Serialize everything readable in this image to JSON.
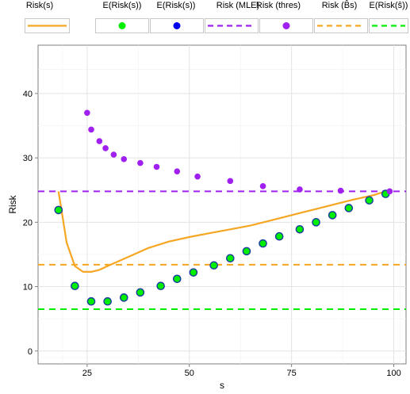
{
  "chart_data": {
    "type": "line",
    "xlabel": "s",
    "ylabel": "Risk",
    "xlim": [
      13,
      103
    ],
    "ylim": [
      -2,
      47.5
    ],
    "x_ticks": [
      25,
      50,
      75,
      100
    ],
    "y_ticks": [
      0,
      10,
      20,
      30,
      40
    ],
    "grid": true,
    "legend_position": "top",
    "colors": {
      "orange": "#f5a623",
      "green": "#00ee00",
      "blue": "#0000ee",
      "purple": "#a020f0",
      "dark_outline": "#1a3aa0"
    },
    "legend": [
      {
        "label": "Risk(s)",
        "key": "line",
        "color": "#f5a623",
        "dashed": false
      },
      {
        "label": "E(Risk(s))",
        "key": "dot",
        "color": "#00ee00",
        "dashed": false
      },
      {
        "label": "E(Risk(s))",
        "key": "dot",
        "color": "#0000ee",
        "dashed": false
      },
      {
        "label": "Risk (MLE)",
        "key": "line",
        "color": "#a020f0",
        "dashed": true
      },
      {
        "label": "Risk (thres)",
        "key": "dot",
        "color": "#a020f0",
        "dashed": false
      },
      {
        "label": "Risk (B̂s)",
        "key": "line",
        "color": "#f5a623",
        "dashed": true
      },
      {
        "label": "E(Risk(ŝ))",
        "key": "line",
        "color": "#00ee00",
        "dashed": true
      }
    ],
    "series": [
      {
        "name": "Risk(s)",
        "kind": "line",
        "color": "#f5a623",
        "x": [
          18,
          20,
          22,
          24,
          26,
          28,
          30,
          35,
          40,
          45,
          50,
          55,
          60,
          65,
          70,
          75,
          80,
          85,
          90,
          95,
          98
        ],
        "y": [
          24.8,
          16.8,
          13.2,
          12.3,
          12.3,
          12.6,
          13.2,
          14.6,
          16.0,
          17.0,
          17.7,
          18.3,
          18.9,
          19.5,
          20.3,
          21.1,
          21.9,
          22.7,
          23.5,
          24.2,
          24.8
        ]
      },
      {
        "name": "E(Risk(s))",
        "kind": "points",
        "fill": "#00ee00",
        "stroke": "#1a3aa0",
        "x": [
          18,
          22,
          26,
          30,
          34,
          38,
          43,
          47,
          51,
          56,
          60,
          64,
          68,
          72,
          77,
          81,
          85,
          89,
          94,
          98
        ],
        "y": [
          21.9,
          10.1,
          7.7,
          7.7,
          8.3,
          9.1,
          10.1,
          11.2,
          12.2,
          13.3,
          14.4,
          15.5,
          16.7,
          17.8,
          18.9,
          20.0,
          21.1,
          22.2,
          23.4,
          24.4
        ]
      },
      {
        "name": "Risk (thres)",
        "kind": "points",
        "fill": "#a020f0",
        "x": [
          25,
          26,
          28,
          29.5,
          31.5,
          34,
          38,
          42,
          47,
          52,
          60,
          68,
          77,
          87,
          99
        ],
        "y": [
          37.0,
          34.4,
          32.6,
          31.5,
          30.5,
          29.8,
          29.2,
          28.6,
          27.9,
          27.1,
          26.4,
          25.6,
          25.1,
          24.9,
          24.8
        ]
      },
      {
        "name": "Risk (MLE)",
        "kind": "hline",
        "color": "#a020f0",
        "y": 24.8
      },
      {
        "name": "Risk (B̂s)",
        "kind": "hline",
        "color": "#f5a623",
        "y": 13.4
      },
      {
        "name": "E(Risk(ŝ))",
        "kind": "hline",
        "color": "#00ee00",
        "y": 6.5
      }
    ]
  }
}
